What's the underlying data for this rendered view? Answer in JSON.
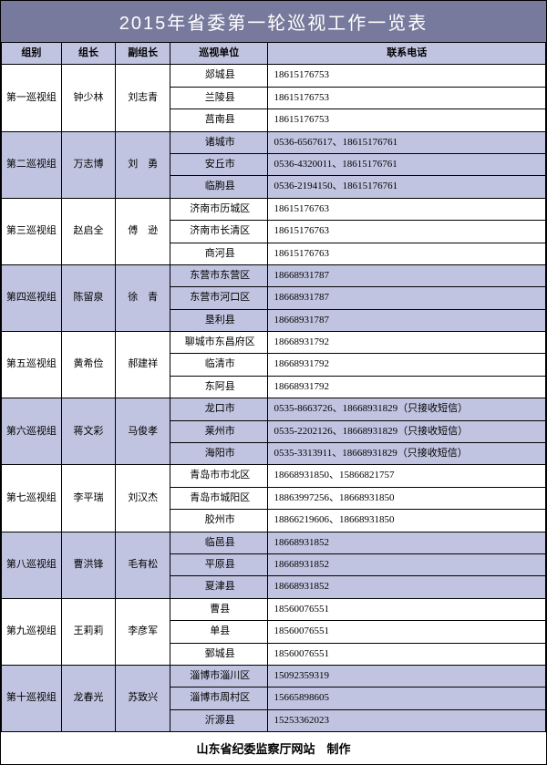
{
  "title": "2015年省委第一轮巡视工作一览表",
  "footer": "山东省纪委监察厅网站　制作",
  "colors": {
    "header_bg": "#777a9c",
    "band_bg": "#c1c4e0",
    "text": "#000000",
    "title_text": "#ffffff"
  },
  "header": {
    "group": "组别",
    "leader": "组长",
    "deputy": "副组长",
    "unit": "巡视单位",
    "phone": "联系电话"
  },
  "groups": [
    {
      "group": "第一巡视组",
      "leader": "钟少林",
      "deputy": "刘志青",
      "rows": [
        {
          "unit": "郯城县",
          "phone": "18615176753"
        },
        {
          "unit": "兰陵县",
          "phone": "18615176753"
        },
        {
          "unit": "莒南县",
          "phone": "18615176753"
        }
      ]
    },
    {
      "group": "第二巡视组",
      "leader": "万志博",
      "deputy": "刘　勇",
      "rows": [
        {
          "unit": "诸城市",
          "phone": "0536-6567617、18615176761"
        },
        {
          "unit": "安丘市",
          "phone": "0536-4320011、18615176761"
        },
        {
          "unit": "临朐县",
          "phone": "0536-2194150、18615176761"
        }
      ]
    },
    {
      "group": "第三巡视组",
      "leader": "赵启全",
      "deputy": "傅　逊",
      "rows": [
        {
          "unit": "济南市历城区",
          "phone": "18615176763"
        },
        {
          "unit": "济南市长清区",
          "phone": "18615176763"
        },
        {
          "unit": "商河县",
          "phone": "18615176763"
        }
      ]
    },
    {
      "group": "第四巡视组",
      "leader": "陈留泉",
      "deputy": "徐　青",
      "rows": [
        {
          "unit": "东营市东营区",
          "phone": "18668931787"
        },
        {
          "unit": "东营市河口区",
          "phone": "18668931787"
        },
        {
          "unit": "垦利县",
          "phone": "18668931787"
        }
      ]
    },
    {
      "group": "第五巡视组",
      "leader": "黄希俭",
      "deputy": "郝建祥",
      "rows": [
        {
          "unit": "聊城市东昌府区",
          "phone": "18668931792"
        },
        {
          "unit": "临清市",
          "phone": "18668931792"
        },
        {
          "unit": "东阿县",
          "phone": "18668931792"
        }
      ]
    },
    {
      "group": "第六巡视组",
      "leader": "蒋文彩",
      "deputy": "马俊孝",
      "rows": [
        {
          "unit": "龙口市",
          "phone": "0535-8663726、18668931829（只接收短信）"
        },
        {
          "unit": "莱州市",
          "phone": "0535-2202126、18668931829（只接收短信）"
        },
        {
          "unit": "海阳市",
          "phone": "0535-3313911、18668931829（只接收短信）"
        }
      ]
    },
    {
      "group": "第七巡视组",
      "leader": "李平瑞",
      "deputy": "刘汉杰",
      "rows": [
        {
          "unit": "青岛市市北区",
          "phone": "18668931850、15866821757"
        },
        {
          "unit": "青岛市城阳区",
          "phone": "18863997256、18668931850"
        },
        {
          "unit": "胶州市",
          "phone": "18866219606、18668931850"
        }
      ]
    },
    {
      "group": "第八巡视组",
      "leader": "曹洪锋",
      "deputy": "毛有松",
      "rows": [
        {
          "unit": "临邑县",
          "phone": "18668931852"
        },
        {
          "unit": "平原县",
          "phone": "18668931852"
        },
        {
          "unit": "夏津县",
          "phone": "18668931852"
        }
      ]
    },
    {
      "group": "第九巡视组",
      "leader": "王莉莉",
      "deputy": "李彦军",
      "rows": [
        {
          "unit": "曹县",
          "phone": "18560076551"
        },
        {
          "unit": "单县",
          "phone": "18560076551"
        },
        {
          "unit": "鄄城县",
          "phone": "18560076551"
        }
      ]
    },
    {
      "group": "第十巡视组",
      "leader": "龙春光",
      "deputy": "苏致兴",
      "rows": [
        {
          "unit": "淄博市淄川区",
          "phone": "15092359319"
        },
        {
          "unit": "淄博市周村区",
          "phone": "15665898605"
        },
        {
          "unit": "沂源县",
          "phone": "15253362023"
        }
      ]
    }
  ]
}
